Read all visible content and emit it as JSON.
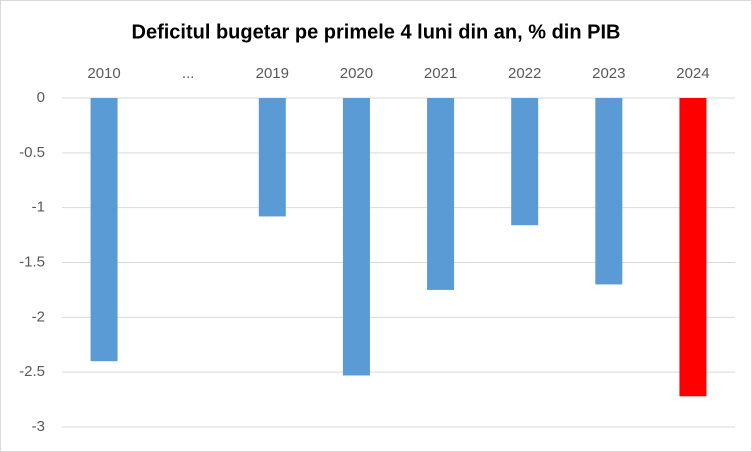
{
  "chart_data": {
    "type": "bar",
    "title": "Deficitul bugetar pe primele 4 luni din an, % din PIB",
    "categories": [
      "2010",
      "...",
      "2019",
      "2020",
      "2021",
      "2022",
      "2023",
      "2024"
    ],
    "values": [
      -2.4,
      null,
      -1.08,
      -2.53,
      -1.75,
      -1.16,
      -1.7,
      -2.72
    ],
    "colors": [
      "#5b9bd5",
      "#5b9bd5",
      "#5b9bd5",
      "#5b9bd5",
      "#5b9bd5",
      "#5b9bd5",
      "#5b9bd5",
      "#ff0000"
    ],
    "ylim": [
      -3,
      0
    ],
    "yticks": [
      0,
      -0.5,
      -1,
      -1.5,
      -2,
      -2.5,
      -3
    ],
    "grid": true
  }
}
